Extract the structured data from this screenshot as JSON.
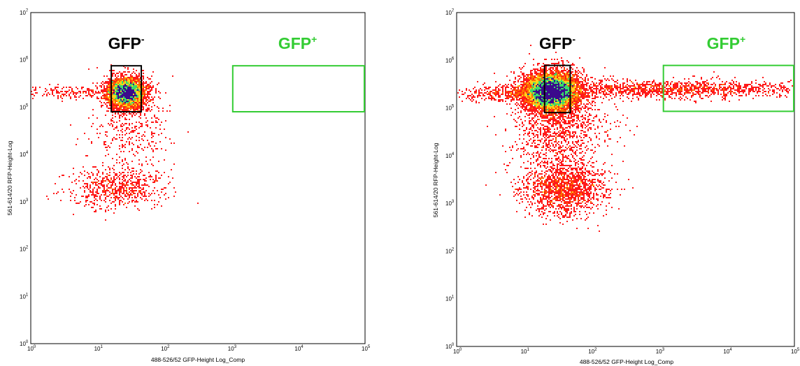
{
  "chart_data": [
    {
      "type": "scatter",
      "subtype": "density-dot-plot",
      "xlabel": "488-526/52 GFP-Height Log_Comp",
      "ylabel": "561-614/20 RFP-Height-Log",
      "xscale": "log",
      "yscale": "log",
      "xlim": [
        1,
        100000
      ],
      "ylim": [
        1,
        10000000
      ],
      "x_ticks": [
        "10^0",
        "10^1",
        "10^2",
        "10^3",
        "10^4",
        "10^5"
      ],
      "y_ticks": [
        "10^0",
        "10^1",
        "10^2",
        "10^3",
        "10^4",
        "10^5",
        "10^6",
        "10^7"
      ],
      "gates": [
        {
          "label": "GFP",
          "superscript": "-",
          "color": "#000000",
          "x_range": [
            16,
            45
          ],
          "y_range": [
            80000,
            750000
          ]
        },
        {
          "label": "GFP",
          "superscript": "+",
          "color": "#33cc33",
          "x_range": [
            1050,
            100000
          ],
          "y_range": [
            80000,
            750000
          ]
        }
      ],
      "populations": [
        {
          "name": "",
          "center": [
            27,
            200000
          ],
          "spread_log": [
            0.14,
            0.16
          ],
          "count": 4000
        },
        {
          "name": "",
          "center": [
            20,
            2000
          ],
          "spread_log": [
            0.35,
            0.22
          ],
          "count": 700
        },
        {
          "name": "",
          "center": [
            30,
            40000
          ],
          "spread_log": [
            0.3,
            0.5
          ],
          "count": 400
        },
        {
          "name": "",
          "center": [
            5,
            200000
          ],
          "spread_log": [
            0.45,
            0.07
          ],
          "count": 220
        }
      ]
    },
    {
      "type": "scatter",
      "subtype": "density-dot-plot",
      "xlabel": "488-526/52 GFP-Height Log_Comp",
      "ylabel": "561-614/20 RFP-Height-Log",
      "xscale": "log",
      "yscale": "log",
      "xlim": [
        1,
        100000
      ],
      "ylim": [
        1,
        10000000
      ],
      "x_ticks": [
        "10^0",
        "10^1",
        "10^2",
        "10^3",
        "10^4",
        "10^5"
      ],
      "y_ticks": [
        "10^0",
        "10^1",
        "10^2",
        "10^3",
        "10^4",
        "10^5",
        "10^6",
        "10^7"
      ],
      "gates": [
        {
          "label": "GFP",
          "superscript": "-",
          "color": "#000000",
          "x_range": [
            20,
            48
          ],
          "y_range": [
            80000,
            780000
          ]
        },
        {
          "label": "GFP",
          "superscript": "+",
          "color": "#33cc33",
          "x_range": [
            1150,
            100000
          ],
          "y_range": [
            85000,
            780000
          ]
        }
      ],
      "populations": [
        {
          "name": "",
          "center": [
            25,
            220000
          ],
          "spread_log": [
            0.2,
            0.2
          ],
          "count": 8000
        },
        {
          "name": "",
          "center": [
            40,
            2000
          ],
          "spread_log": [
            0.3,
            0.28
          ],
          "count": 1600
        },
        {
          "name": "",
          "center": [
            35,
            40000
          ],
          "spread_log": [
            0.35,
            0.5
          ],
          "count": 1200
        },
        {
          "name": "",
          "center": [
            6,
            200000
          ],
          "spread_log": [
            0.4,
            0.08
          ],
          "count": 450
        },
        {
          "name": "",
          "center": [
            1500,
            250000
          ],
          "spread_log": [
            1.0,
            0.09
          ],
          "count": 1400
        }
      ]
    }
  ],
  "colors": {
    "sparse": "#ff1a1a",
    "low": "#ff6a00",
    "mid": "#ffd21a",
    "high": "#3adc6a",
    "peak": "#3b0a8c",
    "gate_negative": "#000000",
    "gate_positive": "#33cc33"
  }
}
